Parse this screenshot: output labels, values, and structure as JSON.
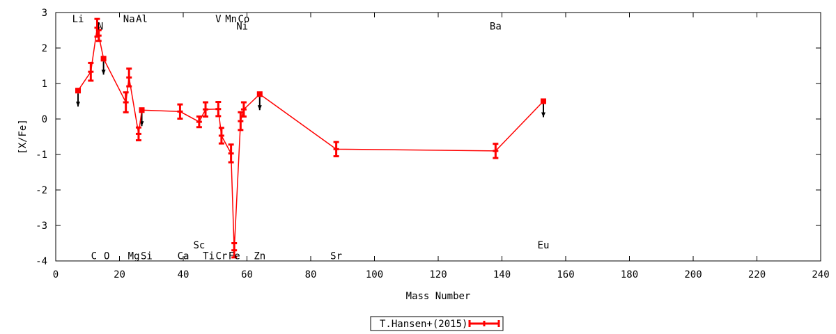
{
  "chart_data": {
    "type": "line",
    "xlabel": "Mass Number",
    "ylabel": "[X/Fe]",
    "xlim": [
      0,
      240
    ],
    "ylim": [
      -4,
      3
    ],
    "xticks": [
      0,
      20,
      40,
      60,
      80,
      100,
      120,
      140,
      160,
      180,
      200,
      220,
      240
    ],
    "yticks": [
      -4,
      -3,
      -2,
      -1,
      0,
      1,
      2,
      3
    ],
    "grid": false,
    "legend_position": "bottom-center",
    "series": [
      {
        "name": "T.Hansen+(2015)",
        "color": "#ff0000",
        "points": [
          {
            "x": 7,
            "y": 0.8,
            "err": 0.05
          },
          {
            "x": 11,
            "y": 1.33,
            "err": 0.25
          },
          {
            "x": 13,
            "y": 2.57,
            "err": 0.25
          },
          {
            "x": 13.5,
            "y": 2.35,
            "err": 0.15
          },
          {
            "x": 15,
            "y": 1.7,
            "err": 0.05
          },
          {
            "x": 22,
            "y": 0.47,
            "err": 0.28
          },
          {
            "x": 23,
            "y": 1.17,
            "err": 0.25
          },
          {
            "x": 26,
            "y": -0.42,
            "err": 0.18
          },
          {
            "x": 27,
            "y": 0.25,
            "err": 0.05
          },
          {
            "x": 39,
            "y": 0.21,
            "err": 0.2
          },
          {
            "x": 45,
            "y": -0.08,
            "err": 0.15
          },
          {
            "x": 47,
            "y": 0.27,
            "err": 0.2
          },
          {
            "x": 51,
            "y": 0.28,
            "err": 0.2
          },
          {
            "x": 52,
            "y": -0.47,
            "err": 0.22
          },
          {
            "x": 55,
            "y": -0.97,
            "err": 0.25
          },
          {
            "x": 56,
            "y": -3.7,
            "err": 0.2
          },
          {
            "x": 58,
            "y": -0.06,
            "err": 0.25
          },
          {
            "x": 59,
            "y": 0.27,
            "err": 0.2
          },
          {
            "x": 64,
            "y": 0.7,
            "err": 0.05
          },
          {
            "x": 88,
            "y": -0.85,
            "err": 0.2
          },
          {
            "x": 138,
            "y": -0.9,
            "err": 0.2
          },
          {
            "x": 153,
            "y": 0.5,
            "err": 0.05
          }
        ]
      }
    ],
    "upper_limits": [
      {
        "x": 7,
        "y": 0.8
      },
      {
        "x": 15,
        "y": 1.7
      },
      {
        "x": 27,
        "y": 0.25
      },
      {
        "x": 64,
        "y": 0.7
      },
      {
        "x": 153,
        "y": 0.5
      }
    ],
    "element_labels": [
      {
        "text": "Li",
        "x": 7,
        "y": 2.82
      },
      {
        "text": "C",
        "x": 12,
        "y": -3.85
      },
      {
        "text": "N",
        "x": 14,
        "y": 2.62
      },
      {
        "text": "O",
        "x": 16,
        "y": -3.85
      },
      {
        "text": "Na",
        "x": 23,
        "y": 2.82
      },
      {
        "text": "Mg",
        "x": 24.5,
        "y": -3.85
      },
      {
        "text": "Al",
        "x": 27,
        "y": 2.82
      },
      {
        "text": "Si",
        "x": 28.5,
        "y": -3.85
      },
      {
        "text": "Ca",
        "x": 40,
        "y": -3.85
      },
      {
        "text": "Sc",
        "x": 45,
        "y": -3.55
      },
      {
        "text": "Ti",
        "x": 48,
        "y": -3.85
      },
      {
        "text": "V",
        "x": 51,
        "y": 2.82
      },
      {
        "text": "Cr",
        "x": 52,
        "y": -3.85
      },
      {
        "text": "Mn",
        "x": 55,
        "y": 2.82
      },
      {
        "text": "Fe",
        "x": 56,
        "y": -3.85
      },
      {
        "text": "Co",
        "x": 59,
        "y": 2.82
      },
      {
        "text": "Ni",
        "x": 58.5,
        "y": 2.62
      },
      {
        "text": "Zn",
        "x": 64,
        "y": -3.85
      },
      {
        "text": "Sr",
        "x": 88,
        "y": -3.85
      },
      {
        "text": "Ba",
        "x": 138,
        "y": 2.62
      },
      {
        "text": "Eu",
        "x": 153,
        "y": -3.55
      }
    ]
  }
}
